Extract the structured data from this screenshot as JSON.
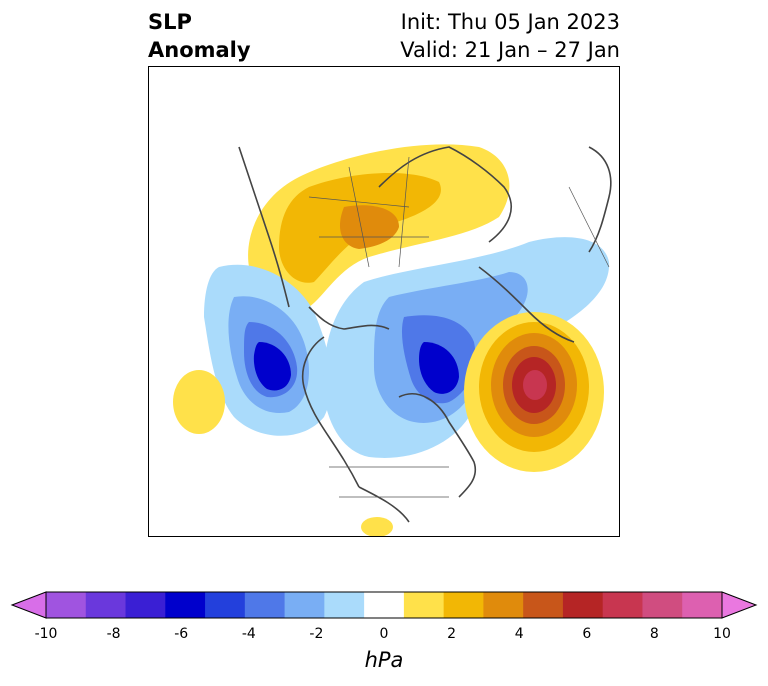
{
  "title": {
    "line1": "SLP",
    "line2": "Anomaly"
  },
  "subtitle": {
    "init": "Init: Thu 05 Jan 2023",
    "valid": "Valid: 21 Jan – 27 Jan"
  },
  "colorbar": {
    "ticks": [
      "-10",
      "-8",
      "-6",
      "-4",
      "-2",
      "0",
      "2",
      "4",
      "6",
      "8",
      "10"
    ],
    "unit": "hPa",
    "colors": [
      "#d86ee8",
      "#a054e0",
      "#6a38dc",
      "#3a1fd4",
      "#0000cc",
      "#2340dc",
      "#4f78e8",
      "#79aef4",
      "#aadbfb",
      "#ffffff",
      "#ffe14a",
      "#f2b705",
      "#e08b0c",
      "#c8561a",
      "#b52525",
      "#c83650",
      "#d04d80",
      "#dd60b0",
      "#ea78e0"
    ]
  }
}
